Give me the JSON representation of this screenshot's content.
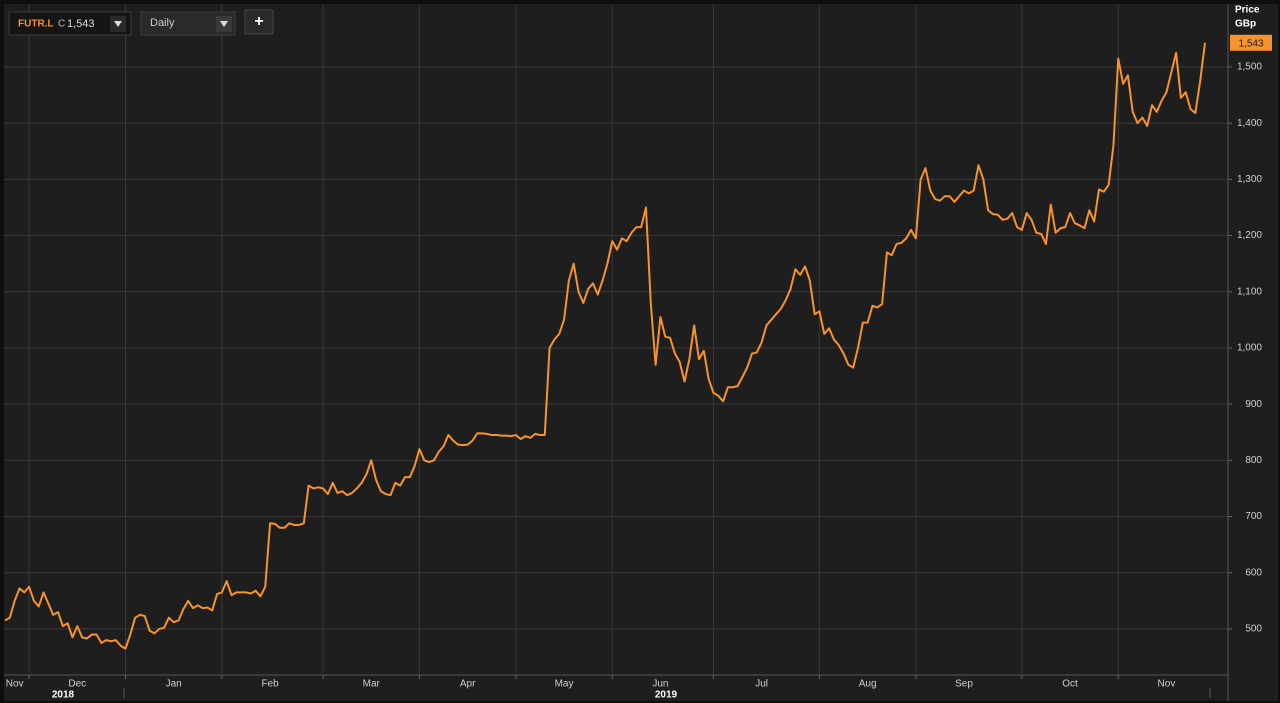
{
  "header": {
    "symbol": "FUTR.L",
    "close_prefix": "C",
    "close": "1,543",
    "interval": "Daily",
    "add_button": "+",
    "axis_title": "Price",
    "axis_unit": "GBp",
    "year_labels": [
      "2018",
      "2019"
    ]
  },
  "chart_data": {
    "type": "line",
    "categories": [
      null,
      null,
      "Nov",
      null,
      null,
      null,
      null,
      null,
      null,
      null,
      null,
      null,
      null,
      null,
      null,
      "Dec",
      null,
      null,
      null,
      null,
      null,
      null,
      null,
      null,
      null,
      null,
      null,
      null,
      null,
      null,
      null,
      null,
      null,
      null,
      null,
      "Jan",
      null,
      null,
      null,
      null,
      null,
      null,
      null,
      null,
      null,
      null,
      null,
      null,
      null,
      null,
      null,
      null,
      null,
      null,
      null,
      "Feb",
      null,
      null,
      null,
      null,
      null,
      null,
      null,
      null,
      null,
      null,
      null,
      null,
      null,
      null,
      null,
      null,
      null,
      null,
      null,
      null,
      "Mar",
      null,
      null,
      null,
      null,
      null,
      null,
      null,
      null,
      null,
      null,
      null,
      null,
      null,
      null,
      null,
      null,
      null,
      null,
      null,
      "Apr",
      null,
      null,
      null,
      null,
      null,
      null,
      null,
      null,
      null,
      null,
      null,
      null,
      null,
      null,
      null,
      null,
      null,
      null,
      null,
      "May",
      null,
      null,
      null,
      null,
      null,
      null,
      null,
      null,
      null,
      null,
      null,
      null,
      null,
      null,
      null,
      null,
      null,
      null,
      null,
      "Jun",
      null,
      null,
      null,
      null,
      null,
      null,
      null,
      null,
      null,
      null,
      null,
      null,
      null,
      null,
      null,
      null,
      null,
      null,
      null,
      null,
      "Jul",
      null,
      null,
      null,
      null,
      null,
      null,
      null,
      null,
      null,
      null,
      null,
      null,
      null,
      null,
      null,
      null,
      null,
      null,
      null,
      null,
      null,
      "Aug",
      null,
      null,
      null,
      null,
      null,
      null,
      null,
      null,
      null,
      null,
      null,
      null,
      null,
      null,
      null,
      null,
      null,
      null,
      null,
      "Sep",
      null,
      null,
      null,
      null,
      null,
      null,
      null,
      null,
      null,
      null,
      null,
      null,
      null,
      null,
      null,
      null,
      null,
      null,
      null,
      null,
      null,
      "Oct",
      null,
      null,
      null,
      null,
      null,
      null,
      null,
      null,
      null,
      null,
      null,
      null,
      null,
      null,
      null,
      null,
      null,
      null,
      null,
      "Nov",
      null,
      null,
      null,
      null,
      null,
      null,
      null,
      null
    ],
    "series": [
      {
        "name": "FUTR.L",
        "color": "#f7932d",
        "values": [
          515,
          520,
          550,
          572,
          565,
          575,
          550,
          540,
          565,
          545,
          525,
          530,
          505,
          510,
          485,
          505,
          485,
          483,
          490,
          490,
          475,
          480,
          478,
          480,
          470,
          465,
          490,
          520,
          525,
          523,
          497,
          492,
          500,
          502,
          520,
          512,
          515,
          535,
          550,
          537,
          542,
          537,
          538,
          533,
          562,
          565,
          585,
          560,
          565,
          565,
          565,
          563,
          568,
          558,
          575,
          688,
          687,
          680,
          680,
          688,
          685,
          685,
          688,
          755,
          750,
          752,
          750,
          740,
          760,
          742,
          745,
          738,
          742,
          750,
          760,
          775,
          800,
          765,
          745,
          740,
          738,
          760,
          755,
          770,
          770,
          790,
          820,
          800,
          797,
          800,
          815,
          825,
          845,
          835,
          828,
          827,
          828,
          835,
          848,
          848,
          847,
          845,
          845,
          844,
          844,
          843,
          845,
          838,
          843,
          840,
          847,
          845,
          845,
          1000,
          1015,
          1025,
          1050,
          1120,
          1150,
          1100,
          1080,
          1105,
          1115,
          1095,
          1120,
          1150,
          1190,
          1175,
          1195,
          1190,
          1205,
          1215,
          1215,
          1250,
          1080,
          970,
          1055,
          1020,
          1018,
          990,
          975,
          940,
          980,
          1040,
          980,
          995,
          945,
          920,
          915,
          905,
          930,
          930,
          932,
          948,
          965,
          990,
          992,
          1010,
          1040,
          1050,
          1060,
          1070,
          1085,
          1105,
          1140,
          1130,
          1145,
          1120,
          1060,
          1065,
          1025,
          1035,
          1015,
          1005,
          990,
          970,
          965,
          1000,
          1045,
          1045,
          1075,
          1072,
          1078,
          1170,
          1165,
          1185,
          1187,
          1195,
          1210,
          1195,
          1300,
          1320,
          1280,
          1265,
          1262,
          1270,
          1270,
          1260,
          1270,
          1280,
          1275,
          1280,
          1325,
          1300,
          1245,
          1238,
          1237,
          1228,
          1230,
          1240,
          1215,
          1210,
          1240,
          1228,
          1205,
          1203,
          1185,
          1255,
          1205,
          1213,
          1215,
          1240,
          1222,
          1218,
          1213,
          1245,
          1225,
          1282,
          1278,
          1290,
          1360,
          1515,
          1470,
          1485,
          1420,
          1400,
          1410,
          1395,
          1432,
          1420,
          1440,
          1455,
          1490,
          1525,
          1445,
          1455,
          1425,
          1418,
          1475,
          1543
        ]
      }
    ],
    "ylim": [
      418,
      1612
    ],
    "yticks": [
      500,
      600,
      700,
      800,
      900,
      {
        "value": 1000,
        "label": "1,000"
      },
      {
        "value": 1100,
        "label": "1,100"
      },
      {
        "value": 1200,
        "label": "1,200"
      },
      {
        "value": 1300,
        "label": "1,300"
      },
      {
        "value": 1400,
        "label": "1,400"
      },
      {
        "value": 1500,
        "label": "1,500"
      }
    ],
    "grid": true
  }
}
